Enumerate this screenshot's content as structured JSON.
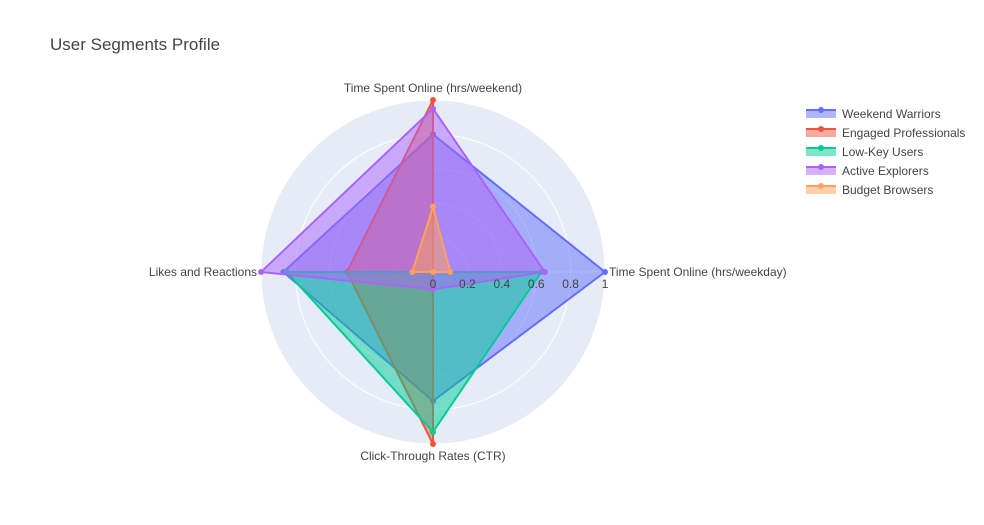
{
  "chart_data": {
    "type": "radar",
    "title": "User Segments Profile",
    "axes": [
      "Time Spent Online (hrs/weekday)",
      "Time Spent Online (hrs/weekend)",
      "Likes and Reactions",
      "Click-Through Rates (CTR)"
    ],
    "radial_range": [
      0,
      1
    ],
    "radial_ticks": [
      0,
      0.2,
      0.4,
      0.6,
      0.8,
      1
    ],
    "radial_tick_labels": [
      "0",
      "0.2",
      "0.4",
      "0.6",
      "0.8",
      "1"
    ],
    "grid": true,
    "legend_position": "top-right",
    "series": [
      {
        "name": "Weekend Warriors",
        "color": "#636efa",
        "values": [
          1.0,
          0.8,
          0.87,
          0.75
        ]
      },
      {
        "name": "Engaged Professionals",
        "color": "#ef553b",
        "values": [
          0.0,
          1.0,
          0.5,
          1.0
        ]
      },
      {
        "name": "Low-Key Users",
        "color": "#00cc96",
        "values": [
          0.63,
          0.0,
          0.85,
          0.93
        ]
      },
      {
        "name": "Active Explorers",
        "color": "#ab63fa",
        "values": [
          0.65,
          0.95,
          1.0,
          0.1
        ]
      },
      {
        "name": "Budget Browsers",
        "color": "#ffa15a",
        "values": [
          0.1,
          0.38,
          0.12,
          0.0
        ]
      }
    ]
  }
}
